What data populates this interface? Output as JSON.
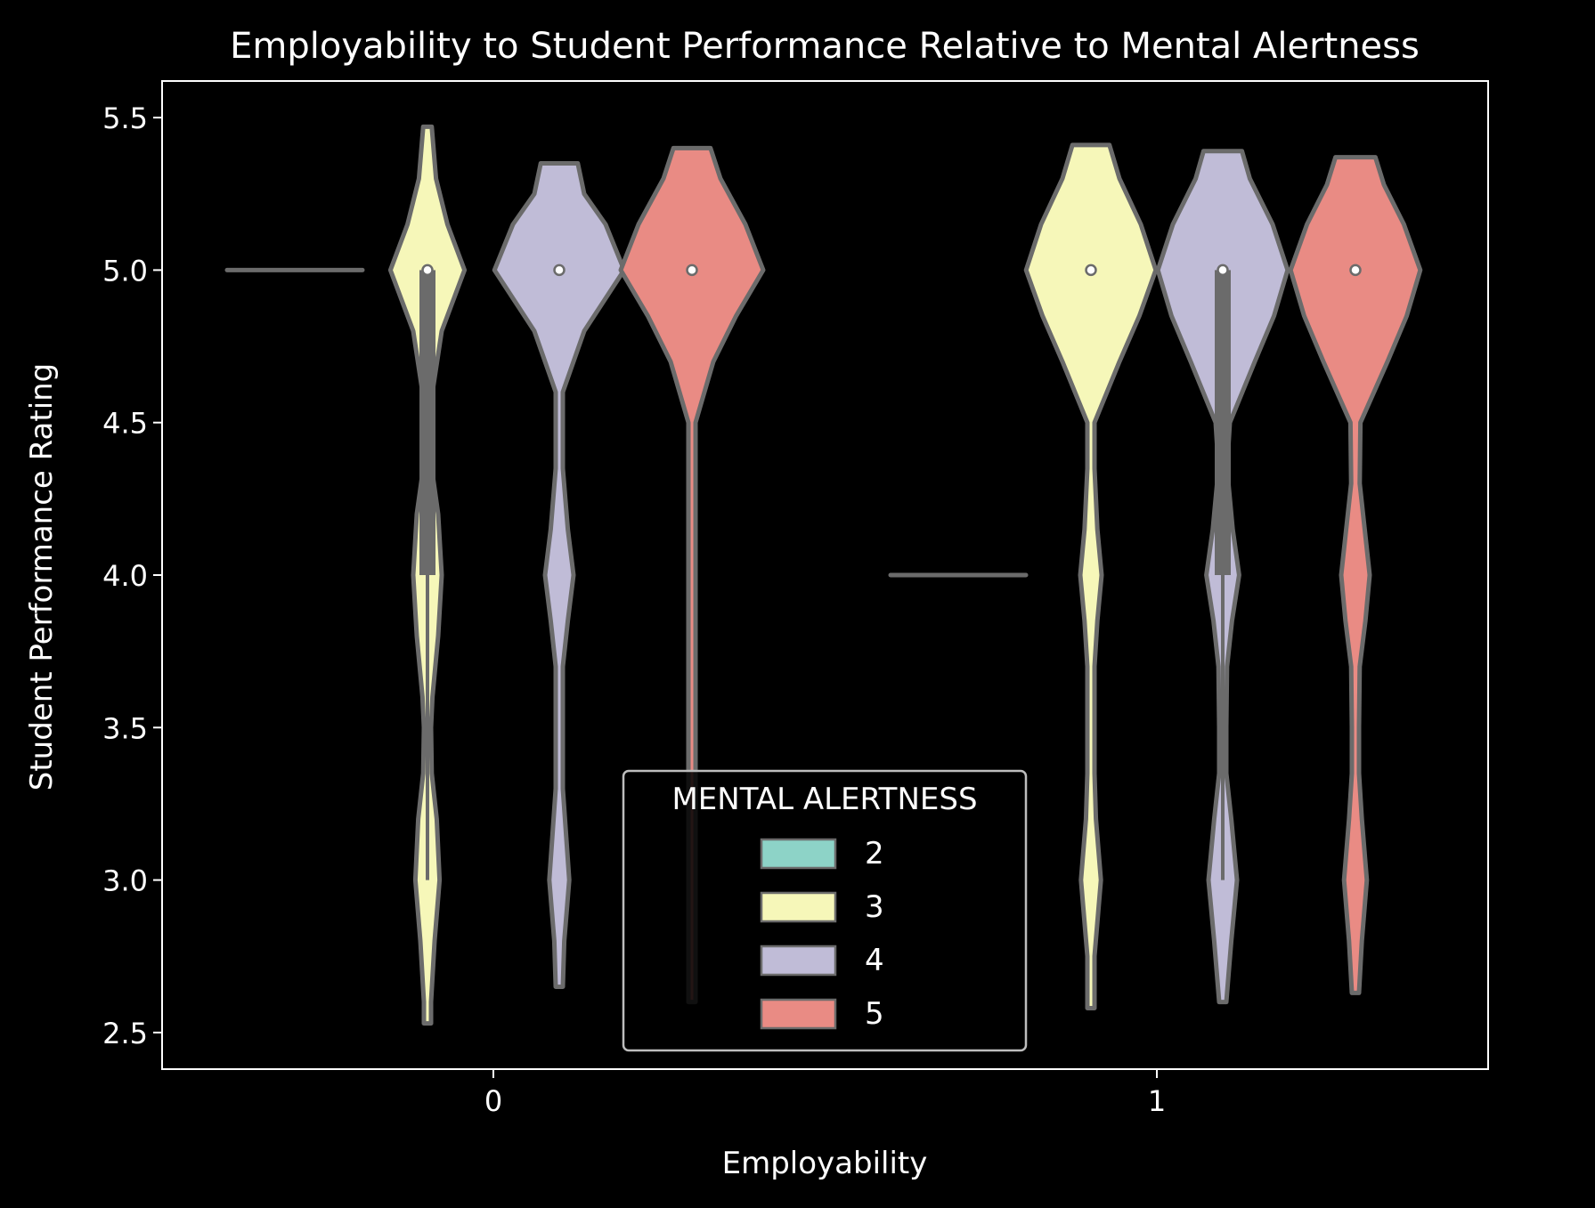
{
  "chart_data": {
    "type": "violin",
    "title": "Employability to Student Performance Relative to Mental Alertness",
    "xlabel": "Employability",
    "ylabel": "Student Performance Rating",
    "categories": [
      "0",
      "1"
    ],
    "yticks": [
      "2.5",
      "3.0",
      "3.5",
      "4.0",
      "4.5",
      "5.0",
      "5.5"
    ],
    "ylim": [
      2.38,
      5.62
    ],
    "grid": false,
    "legend": {
      "title": "MENTAL ALERTNESS",
      "placement": "lower-center",
      "entries": [
        "2",
        "3",
        "4",
        "5"
      ]
    },
    "colors": {
      "background": "#000000",
      "axes": "#ffffff",
      "outline": "#6b6b6b",
      "series": {
        "2": "#8dd3c7",
        "3": "#f6f7b9",
        "4": "#c0bcd7",
        "5": "#e98b84"
      }
    },
    "violins": [
      {
        "category": "0",
        "hue": "2",
        "type": "flat",
        "value": 5.0
      },
      {
        "category": "0",
        "hue": "3",
        "min": 2.53,
        "max": 5.47,
        "median": 5.0,
        "q1": 4.0,
        "q3": 5.0,
        "whisker_low": 3.0,
        "whisker_high": 5.0,
        "profile": [
          [
            2.53,
            0.01
          ],
          [
            2.6,
            0.04
          ],
          [
            2.8,
            0.1
          ],
          [
            3.0,
            0.17
          ],
          [
            3.2,
            0.13
          ],
          [
            3.35,
            0.06
          ],
          [
            3.5,
            0.05
          ],
          [
            3.6,
            0.07
          ],
          [
            3.8,
            0.15
          ],
          [
            4.0,
            0.2
          ],
          [
            4.2,
            0.15
          ],
          [
            4.35,
            0.06
          ],
          [
            4.5,
            0.04
          ],
          [
            4.6,
            0.07
          ],
          [
            4.8,
            0.2
          ],
          [
            5.0,
            0.52
          ],
          [
            5.15,
            0.28
          ],
          [
            5.3,
            0.12
          ],
          [
            5.47,
            0.06
          ]
        ]
      },
      {
        "category": "0",
        "hue": "4",
        "min": 2.65,
        "max": 5.35,
        "median": 5.0,
        "q1": 5.0,
        "q3": 5.0,
        "whisker_low": 5.0,
        "whisker_high": 5.0,
        "profile": [
          [
            2.65,
            0.02
          ],
          [
            2.8,
            0.07
          ],
          [
            3.0,
            0.14
          ],
          [
            3.2,
            0.08
          ],
          [
            3.3,
            0.03
          ],
          [
            3.5,
            0.02
          ],
          [
            3.7,
            0.04
          ],
          [
            3.85,
            0.12
          ],
          [
            4.0,
            0.2
          ],
          [
            4.15,
            0.12
          ],
          [
            4.35,
            0.03
          ],
          [
            4.5,
            0.02
          ],
          [
            4.6,
            0.05
          ],
          [
            4.8,
            0.35
          ],
          [
            5.0,
            0.91
          ],
          [
            5.15,
            0.65
          ],
          [
            5.25,
            0.35
          ],
          [
            5.35,
            0.26
          ]
        ]
      },
      {
        "category": "0",
        "hue": "5",
        "min": 2.6,
        "max": 5.4,
        "median": 5.0,
        "q1": 5.0,
        "q3": 5.0,
        "whisker_low": 5.0,
        "whisker_high": 5.0,
        "profile": [
          [
            2.6,
            0.01
          ],
          [
            2.8,
            0.02
          ],
          [
            3.0,
            0.04
          ],
          [
            3.2,
            0.02
          ],
          [
            3.5,
            0.01
          ],
          [
            4.0,
            0.01
          ],
          [
            4.35,
            0.02
          ],
          [
            4.5,
            0.05
          ],
          [
            4.7,
            0.3
          ],
          [
            4.85,
            0.62
          ],
          [
            5.0,
            1.0
          ],
          [
            5.15,
            0.75
          ],
          [
            5.3,
            0.4
          ],
          [
            5.4,
            0.26
          ]
        ]
      },
      {
        "category": "1",
        "hue": "2",
        "type": "flat",
        "value": 4.0
      },
      {
        "category": "1",
        "hue": "3",
        "min": 2.58,
        "max": 5.41,
        "median": 5.0,
        "q1": 5.0,
        "q3": 5.0,
        "whisker_low": 5.0,
        "whisker_high": 5.0,
        "profile": [
          [
            2.58,
            0.02
          ],
          [
            2.75,
            0.05
          ],
          [
            3.0,
            0.14
          ],
          [
            3.2,
            0.07
          ],
          [
            3.35,
            0.03
          ],
          [
            3.5,
            0.02
          ],
          [
            3.7,
            0.03
          ],
          [
            3.85,
            0.09
          ],
          [
            4.0,
            0.15
          ],
          [
            4.15,
            0.09
          ],
          [
            4.35,
            0.03
          ],
          [
            4.5,
            0.05
          ],
          [
            4.7,
            0.4
          ],
          [
            4.85,
            0.68
          ],
          [
            5.0,
            0.91
          ],
          [
            5.15,
            0.7
          ],
          [
            5.3,
            0.4
          ],
          [
            5.41,
            0.26
          ]
        ]
      },
      {
        "category": "1",
        "hue": "4",
        "min": 2.6,
        "max": 5.39,
        "median": 5.0,
        "q1": 4.0,
        "q3": 5.0,
        "whisker_low": 3.0,
        "whisker_high": 5.0,
        "profile": [
          [
            2.6,
            0.03
          ],
          [
            2.8,
            0.12
          ],
          [
            3.0,
            0.2
          ],
          [
            3.2,
            0.12
          ],
          [
            3.35,
            0.05
          ],
          [
            3.5,
            0.04
          ],
          [
            3.7,
            0.06
          ],
          [
            3.85,
            0.13
          ],
          [
            4.0,
            0.23
          ],
          [
            4.15,
            0.14
          ],
          [
            4.35,
            0.06
          ],
          [
            4.5,
            0.1
          ],
          [
            4.7,
            0.45
          ],
          [
            4.85,
            0.72
          ],
          [
            5.0,
            0.91
          ],
          [
            5.15,
            0.7
          ],
          [
            5.3,
            0.38
          ],
          [
            5.39,
            0.27
          ]
        ]
      },
      {
        "category": "1",
        "hue": "5",
        "min": 2.63,
        "max": 5.37,
        "median": 5.0,
        "q1": 5.0,
        "q3": 5.0,
        "whisker_low": 5.0,
        "whisker_high": 5.0,
        "profile": [
          [
            2.63,
            0.02
          ],
          [
            2.8,
            0.09
          ],
          [
            3.0,
            0.16
          ],
          [
            3.2,
            0.09
          ],
          [
            3.35,
            0.04
          ],
          [
            3.5,
            0.04
          ],
          [
            3.7,
            0.06
          ],
          [
            3.85,
            0.14
          ],
          [
            4.0,
            0.2
          ],
          [
            4.15,
            0.13
          ],
          [
            4.3,
            0.06
          ],
          [
            4.5,
            0.07
          ],
          [
            4.7,
            0.45
          ],
          [
            4.85,
            0.72
          ],
          [
            5.0,
            0.91
          ],
          [
            5.15,
            0.68
          ],
          [
            5.28,
            0.4
          ],
          [
            5.37,
            0.28
          ]
        ]
      }
    ]
  }
}
